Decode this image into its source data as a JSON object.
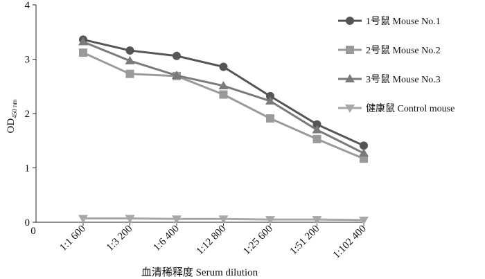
{
  "chart_data": {
    "type": "line",
    "title": "",
    "xlabel": "血清稀释度  Serum dilution",
    "ylabel_main": "OD",
    "ylabel_sub": "450 nm",
    "x_origin_label": "0",
    "categories": [
      "1:1 600",
      "1:3 200",
      "1:6 400",
      "1:12 800",
      "1:25 600",
      "1:51 200",
      "1:102 400"
    ],
    "ylim": [
      0,
      4
    ],
    "yticks": [
      0,
      1,
      2,
      3,
      4
    ],
    "grid": false,
    "legend_position": "top-right",
    "series": [
      {
        "name": "1号鼠 Mouse No.1",
        "marker": "circle",
        "color": "#555555",
        "values": [
          3.36,
          3.16,
          3.06,
          2.86,
          2.32,
          1.8,
          1.41
        ]
      },
      {
        "name": "2号鼠 Mouse No.2",
        "marker": "square",
        "color": "#9a9a9a",
        "values": [
          3.12,
          2.73,
          2.69,
          2.35,
          1.91,
          1.53,
          1.17
        ]
      },
      {
        "name": "3号鼠 Mouse No.3",
        "marker": "triangle-up",
        "color": "#7a7a7a",
        "values": [
          3.32,
          2.97,
          2.7,
          2.51,
          2.23,
          1.7,
          1.27
        ]
      },
      {
        "name": "健康鼠 Control mouse",
        "marker": "triangle-down",
        "color": "#a8a8a8",
        "values": [
          0.07,
          0.07,
          0.06,
          0.06,
          0.05,
          0.05,
          0.04
        ]
      }
    ]
  }
}
